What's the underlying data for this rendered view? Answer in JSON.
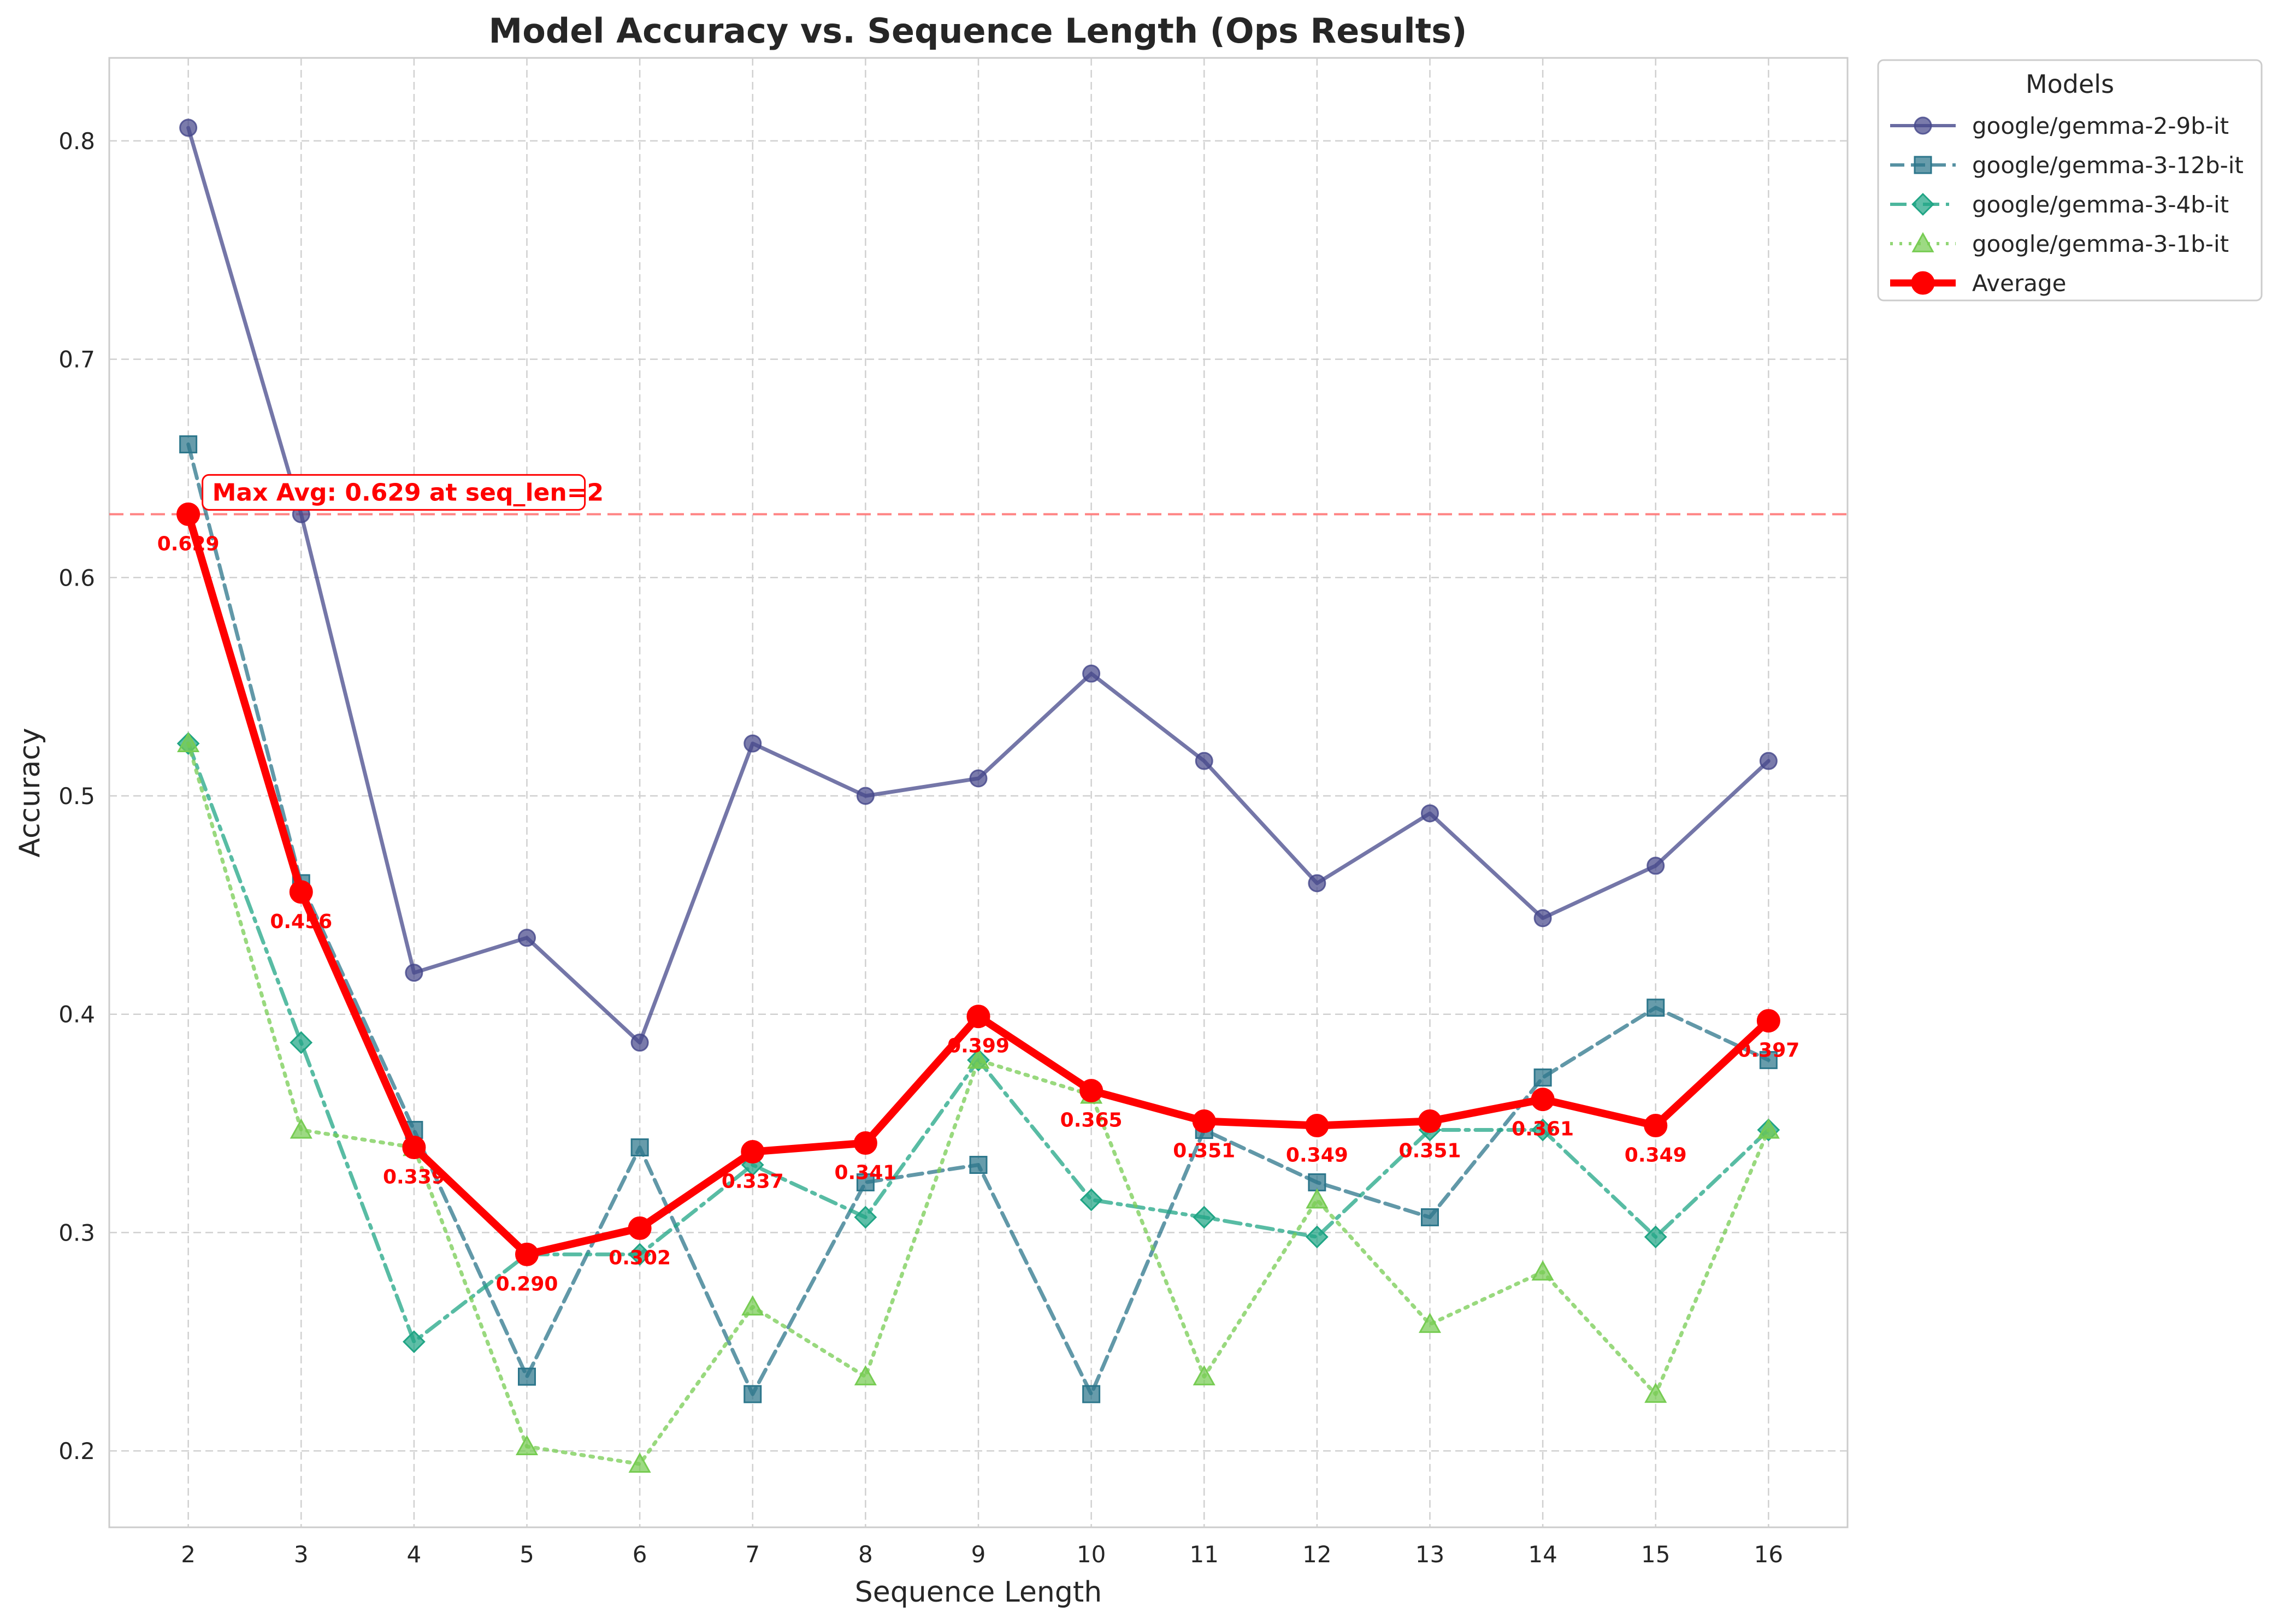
{
  "chart_data": {
    "type": "line",
    "title": "Model Accuracy vs. Sequence Length (Ops Results)",
    "xlabel": "Sequence Length",
    "ylabel": "Accuracy",
    "x": [
      2,
      3,
      4,
      5,
      6,
      7,
      8,
      9,
      10,
      11,
      12,
      13,
      14,
      15,
      16
    ],
    "xlim": [
      1.3,
      16.7
    ],
    "ylim": [
      0.165,
      0.838
    ],
    "yticks": [
      0.2,
      0.3,
      0.4,
      0.5,
      0.6,
      0.7,
      0.8
    ],
    "ytick_labels": [
      "0.2",
      "0.3",
      "0.4",
      "0.5",
      "0.6",
      "0.7",
      "0.8"
    ],
    "xtick_labels": [
      "2",
      "3",
      "4",
      "5",
      "6",
      "7",
      "8",
      "9",
      "10",
      "11",
      "12",
      "13",
      "14",
      "15",
      "16"
    ],
    "grid": true,
    "legend": {
      "title": "Models",
      "placement": "outside-top-right"
    },
    "series": [
      {
        "name": "google/gemma-2-9b-it",
        "color": "#46488b",
        "marker": "circle",
        "linestyle": "solid",
        "values": [
          0.806,
          0.629,
          0.419,
          0.435,
          0.387,
          0.524,
          0.5,
          0.508,
          0.556,
          0.516,
          0.46,
          0.492,
          0.444,
          0.468,
          0.516
        ]
      },
      {
        "name": "google/gemma-3-12b-it",
        "color": "#2c768b",
        "marker": "square",
        "linestyle": "dashed",
        "values": [
          0.661,
          0.46,
          0.347,
          0.234,
          0.339,
          0.226,
          0.323,
          0.331,
          0.226,
          0.347,
          0.323,
          0.307,
          0.371,
          0.403,
          0.379
        ]
      },
      {
        "name": "google/gemma-3-4b-it",
        "color": "#20a585",
        "marker": "diamond",
        "linestyle": "dashdot",
        "values": [
          0.524,
          0.387,
          0.25,
          0.29,
          0.29,
          0.331,
          0.307,
          0.379,
          0.315,
          0.307,
          0.298,
          0.347,
          0.347,
          0.298,
          0.347
        ]
      },
      {
        "name": "google/gemma-3-1b-it",
        "color": "#77cc53",
        "marker": "triangle",
        "linestyle": "dotted",
        "values": [
          0.524,
          0.347,
          0.339,
          0.202,
          0.194,
          0.266,
          0.234,
          0.379,
          0.363,
          0.234,
          0.315,
          0.258,
          0.282,
          0.226,
          0.347
        ]
      },
      {
        "name": "Average",
        "color": "#ff0000",
        "marker": "circle",
        "linestyle": "solid",
        "values": [
          0.629,
          0.456,
          0.339,
          0.29,
          0.302,
          0.337,
          0.341,
          0.399,
          0.365,
          0.351,
          0.349,
          0.351,
          0.361,
          0.349,
          0.397
        ],
        "labels": [
          "0.629",
          "0.456",
          "0.339",
          "0.290",
          "0.302",
          "0.337",
          "0.341",
          "0.399",
          "0.365",
          "0.351",
          "0.349",
          "0.351",
          "0.361",
          "0.349",
          "0.397"
        ]
      }
    ],
    "reference_line": {
      "y": 0.629,
      "color": "#ff6f6f"
    },
    "annotation": {
      "text": "Max Avg: 0.629 at seq_len=2",
      "x": 2,
      "y": 0.629
    }
  }
}
